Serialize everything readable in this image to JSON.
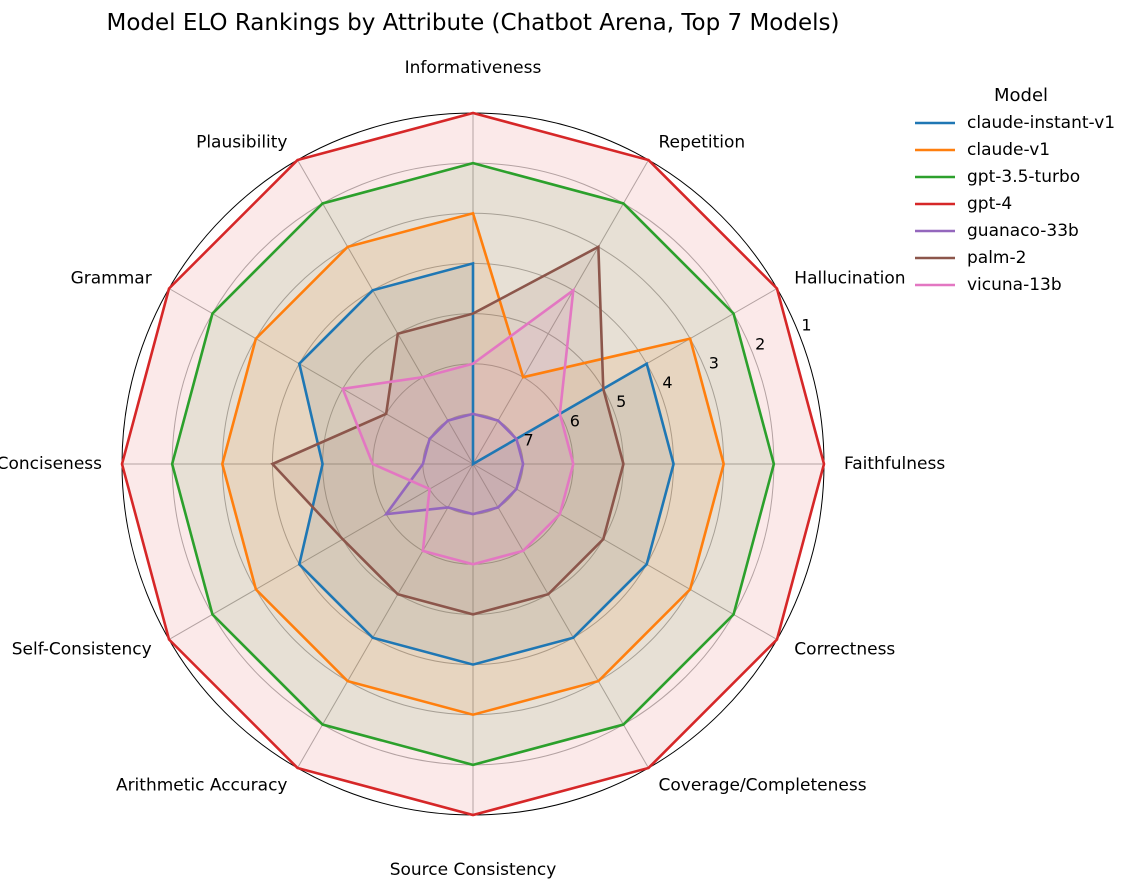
{
  "chart_data": {
    "type": "radar",
    "title": "Model ELO Rankings by Attribute (Chatbot Arena, Top 7 Models)",
    "axes": [
      "Faithfulness",
      "Hallucination",
      "Repetition",
      "Informativeness",
      "Plausibility",
      "Grammar",
      "Conciseness",
      "Self-Consistency",
      "Arithmetic Accuracy",
      "Source Consistency",
      "Coverage/Completeness",
      "Correctness"
    ],
    "radial_ticks": [
      "1",
      "2",
      "3",
      "4",
      "5",
      "6",
      "7"
    ],
    "rank_range": [
      1,
      8
    ],
    "grid": true,
    "legend": {
      "title": "Model",
      "placement": "outside top-right"
    },
    "series": [
      {
        "name": "claude-instant-v1",
        "color": "#1f77b4",
        "values": [
          4,
          4,
          8,
          4,
          4,
          4,
          5,
          4,
          4,
          4,
          4,
          4
        ]
      },
      {
        "name": "claude-v1",
        "color": "#ff7f0e",
        "values": [
          3,
          3,
          6,
          3,
          3,
          3,
          3,
          3,
          3,
          3,
          3,
          3
        ]
      },
      {
        "name": "gpt-3.5-turbo",
        "color": "#2ca02c",
        "values": [
          2,
          2,
          2,
          2,
          2,
          2,
          2,
          2,
          2,
          2,
          2,
          2
        ]
      },
      {
        "name": "gpt-4",
        "color": "#d62728",
        "values": [
          1,
          1,
          1,
          1,
          1,
          1,
          1,
          1,
          1,
          1,
          1,
          1
        ]
      },
      {
        "name": "guanaco-33b",
        "color": "#9467bd",
        "values": [
          7,
          7,
          7,
          7,
          7,
          7,
          7,
          6,
          7,
          7,
          7,
          7
        ]
      },
      {
        "name": "palm-2",
        "color": "#8c564b",
        "values": [
          5,
          5,
          3,
          5,
          5,
          6,
          4,
          5,
          5,
          5,
          5,
          5
        ]
      },
      {
        "name": "vicuna-13b",
        "color": "#e377c2",
        "values": [
          6,
          6,
          4,
          6,
          6,
          5,
          6,
          7,
          6,
          6,
          6,
          6
        ]
      }
    ]
  }
}
